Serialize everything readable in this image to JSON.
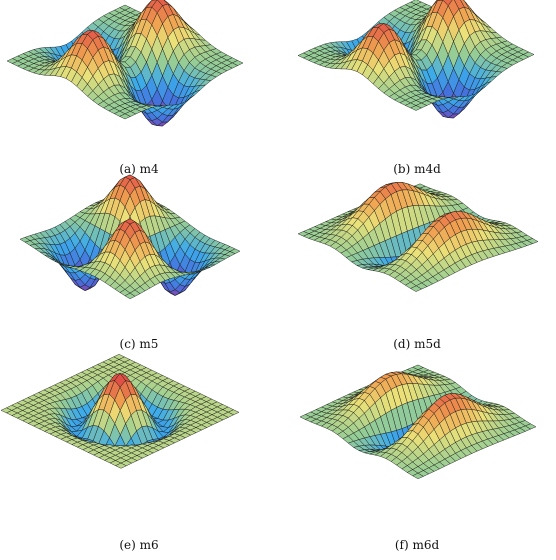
{
  "figure": {
    "panels": [
      {
        "id": "m4",
        "caption": "(a) m4",
        "mode": "m4"
      },
      {
        "id": "m4d",
        "caption": "(b) m4d",
        "mode": "m4d"
      },
      {
        "id": "m5",
        "caption": "(c) m5",
        "mode": "m5"
      },
      {
        "id": "m5d",
        "caption": "(d) m5d",
        "mode": "m5d"
      },
      {
        "id": "m6",
        "caption": "(e) m6",
        "mode": "m6"
      },
      {
        "id": "m6d",
        "caption": "(f) m6d",
        "mode": "m6d"
      }
    ]
  }
}
